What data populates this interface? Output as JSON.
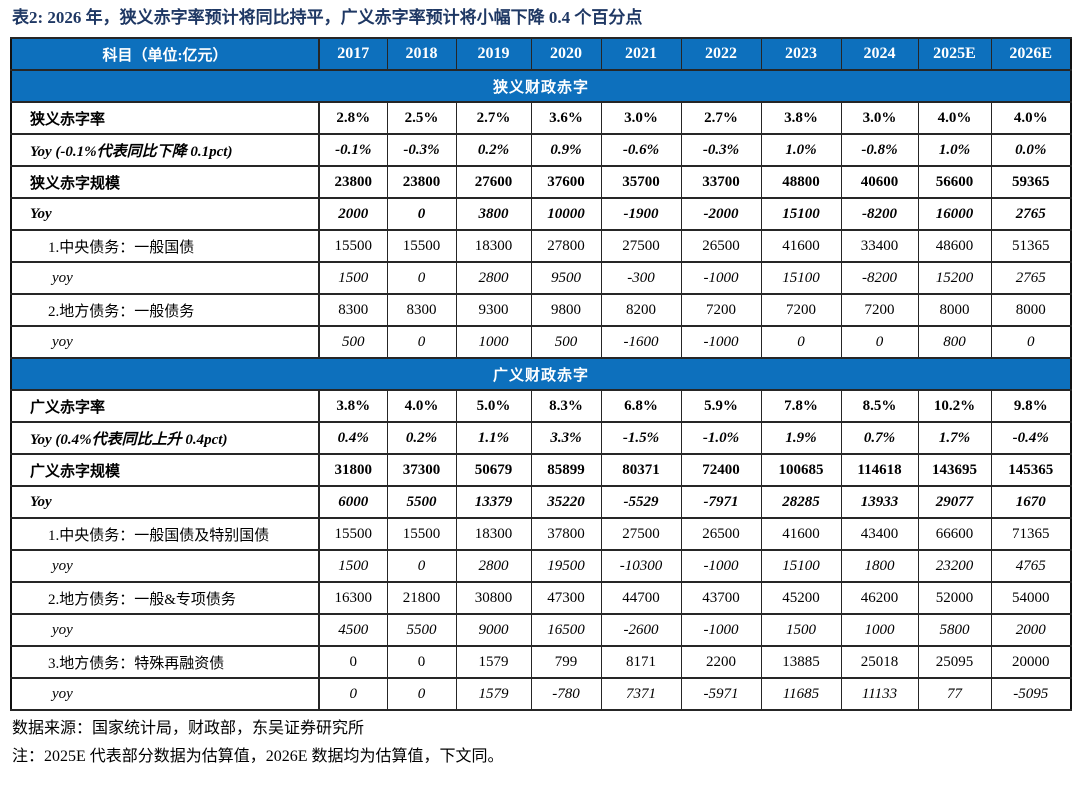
{
  "title": "表2:  2026 年，狭义赤字率预计将同比持平，广义赤字率预计将小幅下降 0.4 个百分点",
  "colors": {
    "header_blue": "#0D70BD",
    "title_navy": "#1F3864"
  },
  "table": {
    "header": [
      "科目（单位:亿元）",
      "2017",
      "2018",
      "2019",
      "2020",
      "2021",
      "2022",
      "2023",
      "2024",
      "2025E",
      "2026E"
    ],
    "sections": [
      {
        "name": "狭义财政赤字",
        "rows": [
          {
            "label": "狭义赤字率",
            "style": "main",
            "values": [
              "2.8%",
              "2.5%",
              "2.7%",
              "3.6%",
              "3.0%",
              "2.7%",
              "3.8%",
              "3.0%",
              "4.0%",
              "4.0%"
            ]
          },
          {
            "label": "Yoy (-0.1%代表同比下降 0.1pct)",
            "style": "main-italic",
            "values": [
              "-0.1%",
              "-0.3%",
              "0.2%",
              "0.9%",
              "-0.6%",
              "-0.3%",
              "1.0%",
              "-0.8%",
              "1.0%",
              "0.0%"
            ]
          },
          {
            "label": "狭义赤字规模",
            "style": "main",
            "values": [
              "23800",
              "23800",
              "27600",
              "37600",
              "35700",
              "33700",
              "48800",
              "40600",
              "56600",
              "59365"
            ]
          },
          {
            "label": "Yoy",
            "style": "main-italic",
            "values": [
              "2000",
              "0",
              "3800",
              "10000",
              "-1900",
              "-2000",
              "15100",
              "-8200",
              "16000",
              "2765"
            ]
          },
          {
            "label": "1.中央债务：一般国债",
            "style": "sub",
            "values": [
              "15500",
              "15500",
              "18300",
              "27800",
              "27500",
              "26500",
              "41600",
              "33400",
              "48600",
              "51365"
            ]
          },
          {
            "label": "yoy",
            "style": "sub-italic",
            "values": [
              "1500",
              "0",
              "2800",
              "9500",
              "-300",
              "-1000",
              "15100",
              "-8200",
              "15200",
              "2765"
            ]
          },
          {
            "label": "2.地方债务：一般债务",
            "style": "sub",
            "values": [
              "8300",
              "8300",
              "9300",
              "9800",
              "8200",
              "7200",
              "7200",
              "7200",
              "8000",
              "8000"
            ]
          },
          {
            "label": "yoy",
            "style": "sub-italic",
            "values": [
              "500",
              "0",
              "1000",
              "500",
              "-1600",
              "-1000",
              "0",
              "0",
              "800",
              "0"
            ]
          }
        ]
      },
      {
        "name": "广义财政赤字",
        "rows": [
          {
            "label": "广义赤字率",
            "style": "main",
            "values": [
              "3.8%",
              "4.0%",
              "5.0%",
              "8.3%",
              "6.8%",
              "5.9%",
              "7.8%",
              "8.5%",
              "10.2%",
              "9.8%"
            ]
          },
          {
            "label": "Yoy (0.4%代表同比上升 0.4pct)",
            "style": "main-italic",
            "values": [
              "0.4%",
              "0.2%",
              "1.1%",
              "3.3%",
              "-1.5%",
              "-1.0%",
              "1.9%",
              "0.7%",
              "1.7%",
              "-0.4%"
            ]
          },
          {
            "label": "广义赤字规模",
            "style": "main",
            "values": [
              "31800",
              "37300",
              "50679",
              "85899",
              "80371",
              "72400",
              "100685",
              "114618",
              "143695",
              "145365"
            ]
          },
          {
            "label": "Yoy",
            "style": "main-italic",
            "values": [
              "6000",
              "5500",
              "13379",
              "35220",
              "-5529",
              "-7971",
              "28285",
              "13933",
              "29077",
              "1670"
            ]
          },
          {
            "label": "1.中央债务：一般国债及特别国债",
            "style": "sub",
            "values": [
              "15500",
              "15500",
              "18300",
              "37800",
              "27500",
              "26500",
              "41600",
              "43400",
              "66600",
              "71365"
            ]
          },
          {
            "label": "yoy",
            "style": "sub-italic",
            "values": [
              "1500",
              "0",
              "2800",
              "19500",
              "-10300",
              "-1000",
              "15100",
              "1800",
              "23200",
              "4765"
            ]
          },
          {
            "label": "2.地方债务：一般&专项债务",
            "style": "sub",
            "values": [
              "16300",
              "21800",
              "30800",
              "47300",
              "44700",
              "43700",
              "45200",
              "46200",
              "52000",
              "54000"
            ]
          },
          {
            "label": "yoy",
            "style": "sub-italic",
            "values": [
              "4500",
              "5500",
              "9000",
              "16500",
              "-2600",
              "-1000",
              "1500",
              "1000",
              "5800",
              "2000"
            ]
          },
          {
            "label": "3.地方债务：特殊再融资债",
            "style": "sub",
            "values": [
              "0",
              "0",
              "1579",
              "799",
              "8171",
              "2200",
              "13885",
              "25018",
              "25095",
              "20000"
            ]
          },
          {
            "label": "yoy",
            "style": "sub-italic",
            "values": [
              "0",
              "0",
              "1579",
              "-780",
              "7371",
              "-5971",
              "11685",
              "11133",
              "77",
              "-5095"
            ]
          }
        ]
      }
    ]
  },
  "footer": {
    "source": "数据来源：国家统计局，财政部，东吴证券研究所",
    "note": "注：2025E 代表部分数据为估算值，2026E 数据均为估算值，下文同。"
  }
}
